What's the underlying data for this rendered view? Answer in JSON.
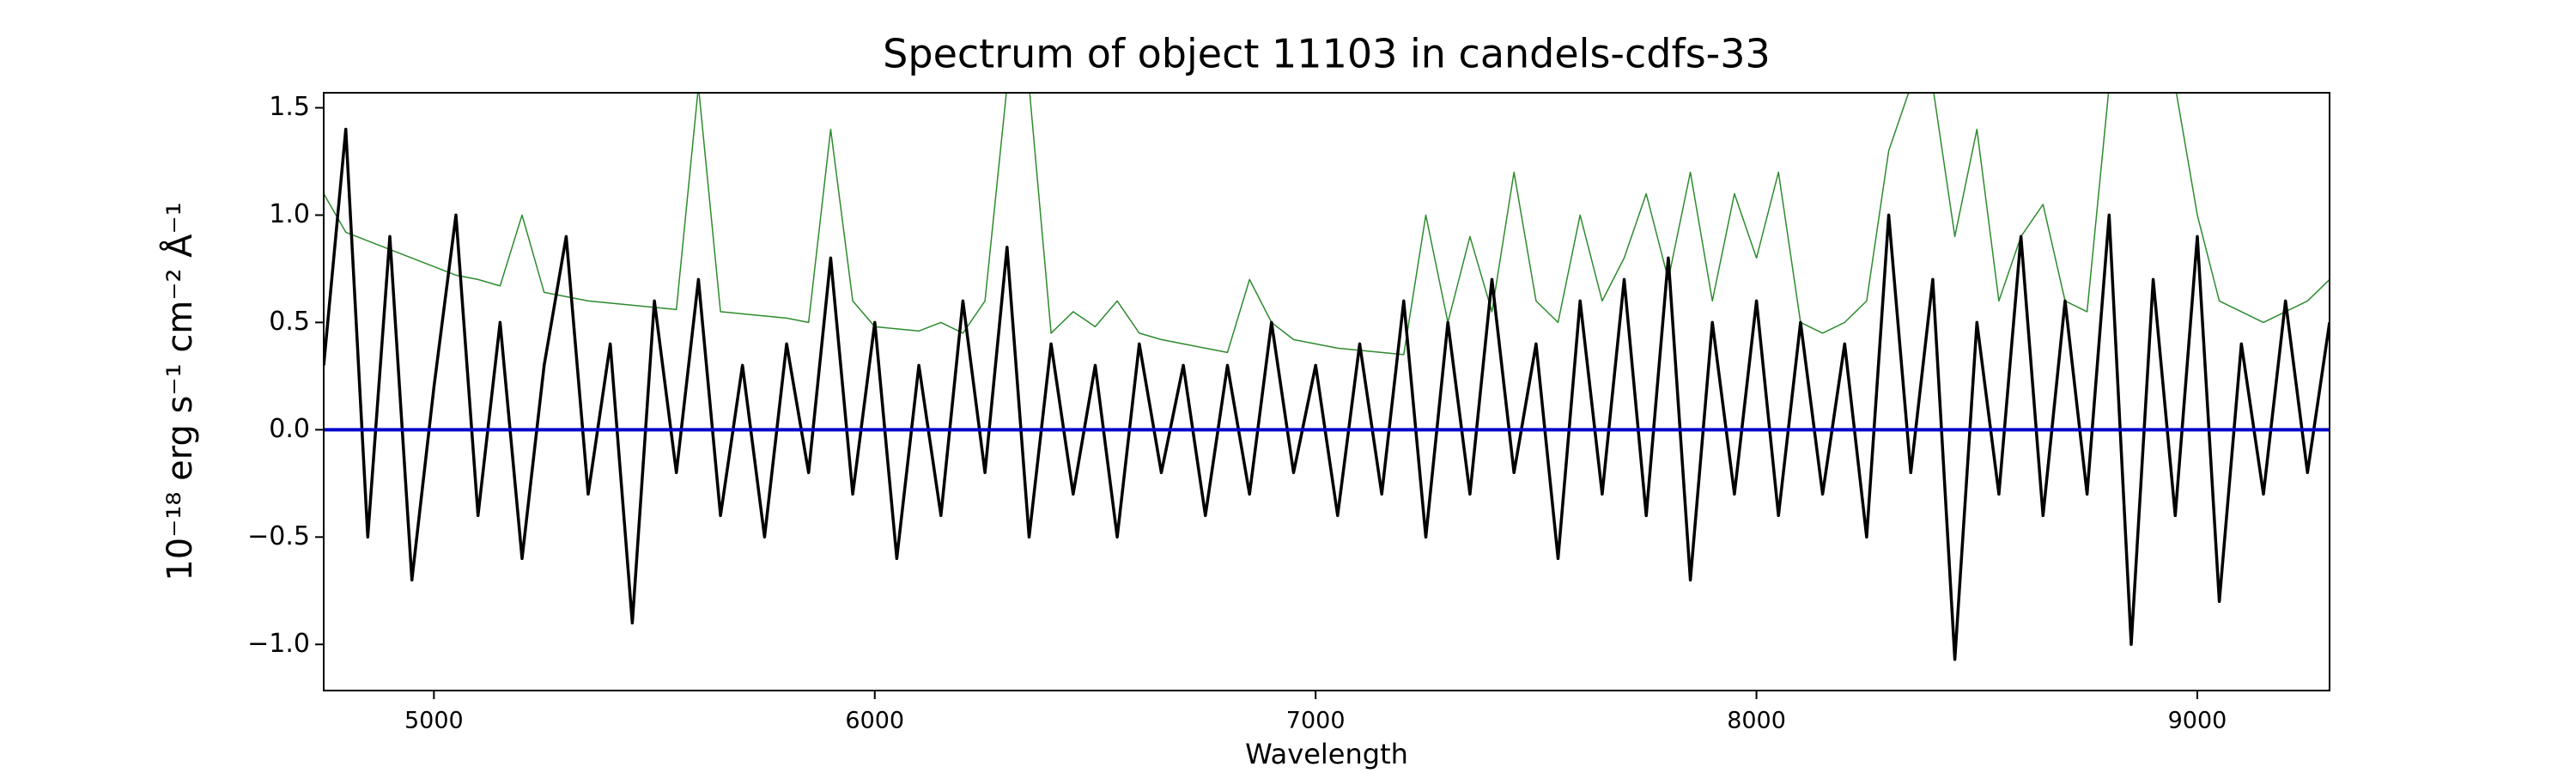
{
  "chart_data": {
    "type": "line",
    "title": "Spectrum of object 11103 in candels-cdfs-33",
    "x_label": "Wavelength",
    "y_label": "10⁻¹⁸ erg s⁻¹ cm⁻² Å⁻¹",
    "x": [
      4750,
      4800,
      4850,
      4900,
      4950,
      5000,
      5050,
      5100,
      5150,
      5200,
      5250,
      5300,
      5350,
      5400,
      5450,
      5500,
      5550,
      5600,
      5650,
      5700,
      5750,
      5800,
      5850,
      5900,
      5950,
      6000,
      6050,
      6100,
      6150,
      6200,
      6250,
      6300,
      6350,
      6400,
      6450,
      6500,
      6550,
      6600,
      6650,
      6700,
      6750,
      6800,
      6850,
      6900,
      6950,
      7000,
      7050,
      7100,
      7150,
      7200,
      7250,
      7300,
      7350,
      7400,
      7450,
      7500,
      7550,
      7600,
      7650,
      7700,
      7750,
      7800,
      7850,
      7900,
      7950,
      8000,
      8050,
      8100,
      8150,
      8200,
      8250,
      8300,
      8350,
      8400,
      8450,
      8500,
      8550,
      8600,
      8650,
      8700,
      8750,
      8800,
      8850,
      8900,
      8950,
      9000,
      9050,
      9100,
      9150,
      9200,
      9250,
      9300
    ],
    "series": [
      {
        "color": "#2e8b2e",
        "width": 1.5,
        "values": [
          1.1,
          0.92,
          0.88,
          0.84,
          0.8,
          0.76,
          0.72,
          0.7,
          0.67,
          1.0,
          0.64,
          0.62,
          0.6,
          0.59,
          0.58,
          0.57,
          0.56,
          1.6,
          0.55,
          0.54,
          0.53,
          0.52,
          0.5,
          1.4,
          0.6,
          0.48,
          0.47,
          0.46,
          0.5,
          0.45,
          0.6,
          1.6,
          1.6,
          0.45,
          0.55,
          0.48,
          0.6,
          0.45,
          0.42,
          0.4,
          0.38,
          0.36,
          0.7,
          0.5,
          0.42,
          0.4,
          0.38,
          0.37,
          0.36,
          0.35,
          1.0,
          0.5,
          0.9,
          0.55,
          1.2,
          0.6,
          0.5,
          1.0,
          0.6,
          0.8,
          1.1,
          0.7,
          1.2,
          0.6,
          1.1,
          0.8,
          1.2,
          0.5,
          0.45,
          0.5,
          0.6,
          1.3,
          1.6,
          1.6,
          0.9,
          1.4,
          0.6,
          0.9,
          1.05,
          0.6,
          0.55,
          1.6,
          1.6,
          1.6,
          1.6,
          1.0,
          0.6,
          0.55,
          0.5,
          0.55,
          0.6,
          0.7
        ]
      },
      {
        "color": "#000000",
        "width": 3.5,
        "values": [
          0.3,
          1.4,
          -0.5,
          0.9,
          -0.7,
          0.2,
          1.0,
          -0.4,
          0.5,
          -0.6,
          0.3,
          0.9,
          -0.3,
          0.4,
          -0.9,
          0.6,
          -0.2,
          0.7,
          -0.4,
          0.3,
          -0.5,
          0.4,
          -0.2,
          0.8,
          -0.3,
          0.5,
          -0.6,
          0.3,
          -0.4,
          0.6,
          -0.2,
          0.85,
          -0.5,
          0.4,
          -0.3,
          0.3,
          -0.5,
          0.4,
          -0.2,
          0.3,
          -0.4,
          0.3,
          -0.3,
          0.5,
          -0.2,
          0.3,
          -0.4,
          0.4,
          -0.3,
          0.6,
          -0.5,
          0.5,
          -0.3,
          0.7,
          -0.2,
          0.4,
          -0.6,
          0.6,
          -0.3,
          0.7,
          -0.4,
          0.8,
          -0.7,
          0.5,
          -0.3,
          0.6,
          -0.4,
          0.5,
          -0.3,
          0.4,
          -0.5,
          1.0,
          -0.2,
          0.7,
          -1.07,
          0.5,
          -0.3,
          0.9,
          -0.4,
          0.6,
          -0.3,
          1.0,
          -1.0,
          0.7,
          -0.4,
          0.9,
          -0.8,
          0.4,
          -0.3,
          0.6,
          -0.2,
          0.5
        ]
      },
      {
        "color": "#0000cc",
        "width": 4,
        "values": [
          0,
          0,
          0,
          0,
          0,
          0,
          0,
          0,
          0,
          0,
          0,
          0,
          0,
          0,
          0,
          0,
          0,
          0,
          0,
          0,
          0,
          0,
          0,
          0,
          0,
          0,
          0,
          0,
          0,
          0,
          0,
          0,
          0,
          0,
          0,
          0,
          0,
          0,
          0,
          0,
          0,
          0,
          0,
          0,
          0,
          0,
          0,
          0,
          0,
          0,
          0,
          0,
          0,
          0,
          0,
          0,
          0,
          0,
          0,
          0,
          0,
          0,
          0,
          0,
          0,
          0,
          0,
          0,
          0,
          0,
          0,
          0,
          0,
          0,
          0,
          0,
          0,
          0,
          0,
          0,
          0,
          0,
          0,
          0,
          0,
          0,
          0,
          0,
          0,
          0,
          0,
          0
        ]
      }
    ],
    "xlim": [
      4750,
      9300
    ],
    "ylim": [
      -1.215,
      1.57
    ],
    "xticks": [
      5000,
      6000,
      7000,
      8000,
      9000
    ],
    "yticks": [
      {
        "value": -1,
        "label": "−1.0"
      },
      {
        "value": -0.5,
        "label": "−0.5"
      },
      {
        "value": 0,
        "label": "0.0"
      },
      0.5,
      {
        "value": 1,
        "label": "1.0"
      },
      1.5
    ]
  }
}
